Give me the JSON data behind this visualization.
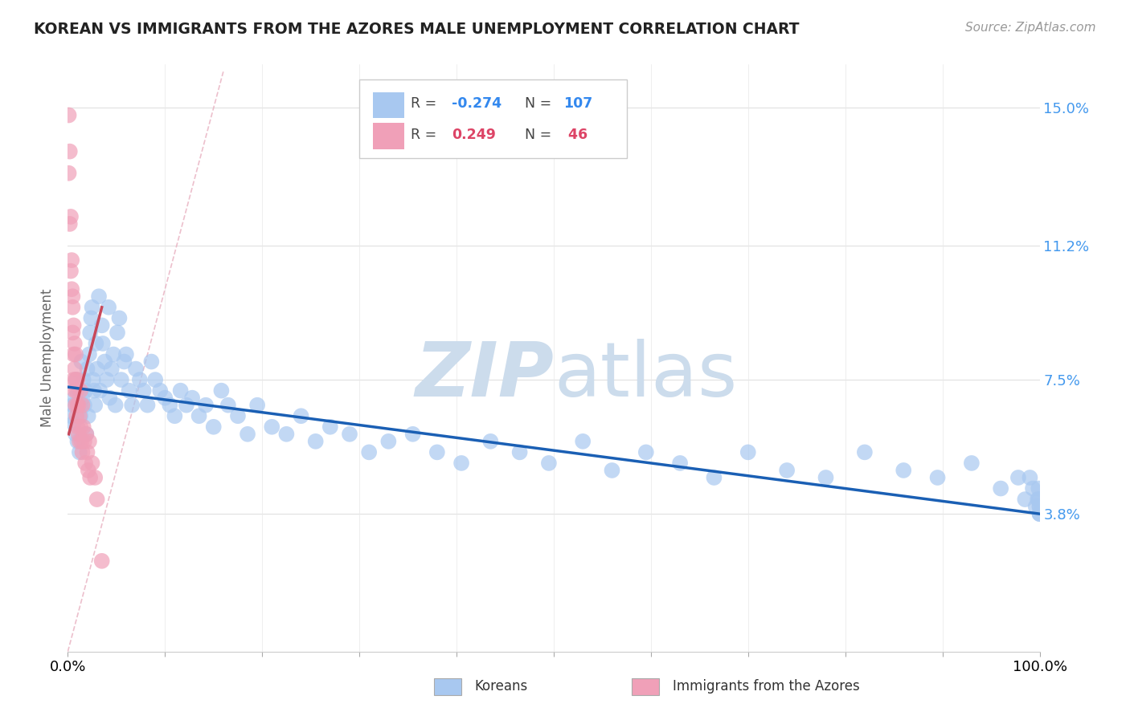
{
  "title": "KOREAN VS IMMIGRANTS FROM THE AZORES MALE UNEMPLOYMENT CORRELATION CHART",
  "source": "Source: ZipAtlas.com",
  "ylabel": "Male Unemployment",
  "ytick_labels": [
    "3.8%",
    "7.5%",
    "11.2%",
    "15.0%"
  ],
  "ytick_values": [
    0.038,
    0.075,
    0.112,
    0.15
  ],
  "xtick_positions": [
    0.0,
    0.1,
    0.2,
    0.3,
    0.4,
    0.5,
    0.6,
    0.7,
    0.8,
    0.9,
    1.0
  ],
  "xmin": 0.0,
  "xmax": 1.0,
  "ymin": 0.0,
  "ymax": 0.162,
  "korean_color": "#a8c8f0",
  "azores_color": "#f0a0b8",
  "korean_line_color": "#1a5fb4",
  "azores_line_color": "#c8485a",
  "diag_line_color": "#d0d0d0",
  "watermark_color": "#ccdcec",
  "background_color": "#ffffff",
  "korean_x": [
    0.003,
    0.005,
    0.006,
    0.007,
    0.008,
    0.009,
    0.01,
    0.011,
    0.012,
    0.013,
    0.013,
    0.014,
    0.015,
    0.016,
    0.017,
    0.018,
    0.019,
    0.02,
    0.021,
    0.022,
    0.023,
    0.024,
    0.025,
    0.026,
    0.027,
    0.028,
    0.029,
    0.03,
    0.032,
    0.033,
    0.035,
    0.036,
    0.038,
    0.04,
    0.042,
    0.043,
    0.045,
    0.047,
    0.049,
    0.051,
    0.053,
    0.055,
    0.058,
    0.06,
    0.063,
    0.066,
    0.07,
    0.074,
    0.078,
    0.082,
    0.086,
    0.09,
    0.095,
    0.1,
    0.105,
    0.11,
    0.116,
    0.122,
    0.128,
    0.135,
    0.142,
    0.15,
    0.158,
    0.165,
    0.175,
    0.185,
    0.195,
    0.21,
    0.225,
    0.24,
    0.255,
    0.27,
    0.29,
    0.31,
    0.33,
    0.355,
    0.38,
    0.405,
    0.435,
    0.465,
    0.495,
    0.53,
    0.56,
    0.595,
    0.63,
    0.665,
    0.7,
    0.74,
    0.78,
    0.82,
    0.86,
    0.895,
    0.93,
    0.96,
    0.978,
    0.985,
    0.99,
    0.993,
    0.996,
    0.998,
    0.999,
    0.999,
    1.0,
    1.0,
    1.0,
    1.0,
    1.0
  ],
  "korean_y": [
    0.065,
    0.068,
    0.063,
    0.07,
    0.06,
    0.075,
    0.058,
    0.072,
    0.055,
    0.068,
    0.065,
    0.08,
    0.07,
    0.075,
    0.068,
    0.072,
    0.06,
    0.078,
    0.065,
    0.082,
    0.088,
    0.092,
    0.095,
    0.075,
    0.072,
    0.068,
    0.085,
    0.078,
    0.098,
    0.072,
    0.09,
    0.085,
    0.08,
    0.075,
    0.095,
    0.07,
    0.078,
    0.082,
    0.068,
    0.088,
    0.092,
    0.075,
    0.08,
    0.082,
    0.072,
    0.068,
    0.078,
    0.075,
    0.072,
    0.068,
    0.08,
    0.075,
    0.072,
    0.07,
    0.068,
    0.065,
    0.072,
    0.068,
    0.07,
    0.065,
    0.068,
    0.062,
    0.072,
    0.068,
    0.065,
    0.06,
    0.068,
    0.062,
    0.06,
    0.065,
    0.058,
    0.062,
    0.06,
    0.055,
    0.058,
    0.06,
    0.055,
    0.052,
    0.058,
    0.055,
    0.052,
    0.058,
    0.05,
    0.055,
    0.052,
    0.048,
    0.055,
    0.05,
    0.048,
    0.055,
    0.05,
    0.048,
    0.052,
    0.045,
    0.048,
    0.042,
    0.048,
    0.045,
    0.04,
    0.042,
    0.045,
    0.042,
    0.038,
    0.04,
    0.042,
    0.038,
    0.04
  ],
  "azores_x": [
    0.001,
    0.001,
    0.002,
    0.002,
    0.003,
    0.003,
    0.004,
    0.004,
    0.005,
    0.005,
    0.005,
    0.006,
    0.006,
    0.006,
    0.007,
    0.007,
    0.007,
    0.008,
    0.008,
    0.008,
    0.009,
    0.009,
    0.01,
    0.01,
    0.01,
    0.011,
    0.011,
    0.012,
    0.012,
    0.013,
    0.013,
    0.014,
    0.015,
    0.015,
    0.016,
    0.017,
    0.018,
    0.019,
    0.02,
    0.021,
    0.022,
    0.023,
    0.025,
    0.028,
    0.03,
    0.035
  ],
  "azores_y": [
    0.148,
    0.132,
    0.118,
    0.138,
    0.12,
    0.105,
    0.108,
    0.1,
    0.095,
    0.098,
    0.088,
    0.082,
    0.09,
    0.075,
    0.085,
    0.072,
    0.078,
    0.068,
    0.075,
    0.082,
    0.065,
    0.072,
    0.068,
    0.062,
    0.075,
    0.06,
    0.068,
    0.065,
    0.058,
    0.072,
    0.062,
    0.058,
    0.068,
    0.055,
    0.062,
    0.058,
    0.052,
    0.06,
    0.055,
    0.05,
    0.058,
    0.048,
    0.052,
    0.048,
    0.042,
    0.025
  ],
  "korean_trend_x": [
    0.0,
    1.0
  ],
  "korean_trend_y": [
    0.073,
    0.038
  ],
  "azores_trend_x": [
    0.001,
    0.035
  ],
  "azores_trend_y": [
    0.06,
    0.095
  ]
}
